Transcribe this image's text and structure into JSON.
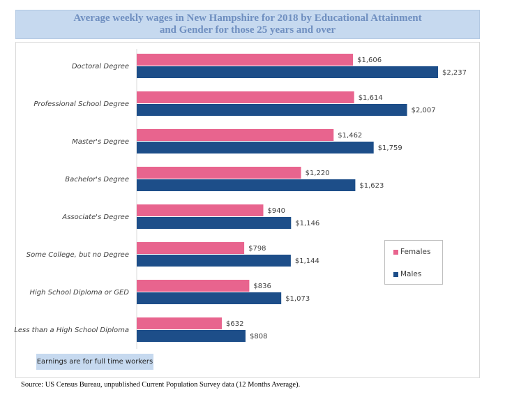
{
  "title": {
    "line1": "Average weekly wages in New Hampshire for 2018 by Educational Attainment",
    "line2": "and Gender for those 25 years and over"
  },
  "note": "Earnings are for full time workers",
  "source": "Source: US Census Bureau, unpublished Current Population Survey data (12 Months Average).",
  "colors": {
    "females": "#e8648e",
    "males": "#1d4e89"
  },
  "chart_data": {
    "type": "bar",
    "orientation": "horizontal",
    "categories": [
      "Doctoral Degree",
      "Professional School Degree",
      "Master's Degree",
      "Bachelor's Degree",
      "Associate's Degree",
      "Some College, but no Degree",
      "High School Diploma or GED",
      "Less than a High School Diploma"
    ],
    "series": [
      {
        "name": "Females",
        "values": [
          1606,
          1614,
          1462,
          1220,
          940,
          798,
          836,
          632
        ],
        "labels": [
          "$1,606",
          "$1,614",
          "$1,462",
          "$1,220",
          "$940",
          "$798",
          "$836",
          "$632"
        ]
      },
      {
        "name": "Males",
        "values": [
          2237,
          2007,
          1759,
          1623,
          1146,
          1144,
          1073,
          808
        ],
        "labels": [
          "$2,237",
          "$2,007",
          "$1,759",
          "$1,623",
          "$1,146",
          "$1,144",
          "$1,073",
          "$808"
        ]
      }
    ],
    "xlim": [
      0,
      2500
    ],
    "grid": false,
    "legend_position": "right"
  }
}
